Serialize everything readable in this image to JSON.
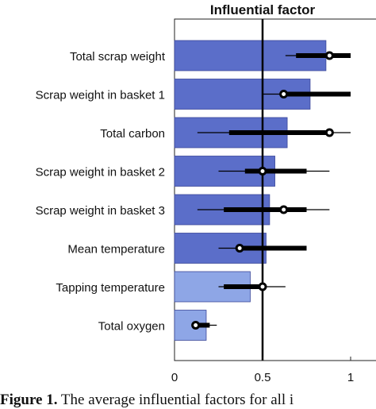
{
  "chart_data": {
    "type": "bar",
    "orientation": "horizontal",
    "title": "Influential factor",
    "categories": [
      "Total scrap weight",
      "Scrap weight in basket 1",
      "Total carbon",
      "Scrap weight in basket 2",
      "Scrap weight in basket 3",
      "Mean temperature",
      "Tapping temperature",
      "Total oxygen"
    ],
    "values": [
      0.86,
      0.77,
      0.64,
      0.57,
      0.54,
      0.52,
      0.43,
      0.18
    ],
    "bar_colors": [
      "#5b6ec9",
      "#5b6ec9",
      "#5b6ec9",
      "#5b6ec9",
      "#5b6ec9",
      "#5b6ec9",
      "#8ea6e6",
      "#8ea6e6"
    ],
    "intervals": [
      {
        "median": 0.88,
        "thick": [
          0.69,
          1.0
        ],
        "thin": [
          0.63,
          1.0
        ]
      },
      {
        "median": 0.62,
        "thick": [
          0.6,
          1.0
        ],
        "thin": [
          0.5,
          1.0
        ]
      },
      {
        "median": 0.88,
        "thick": [
          0.31,
          0.9
        ],
        "thin": [
          0.13,
          1.0
        ]
      },
      {
        "median": 0.5,
        "thick": [
          0.4,
          0.75
        ],
        "thin": [
          0.25,
          0.88
        ]
      },
      {
        "median": 0.62,
        "thick": [
          0.28,
          0.75
        ],
        "thin": [
          0.13,
          0.88
        ]
      },
      {
        "median": 0.37,
        "thick": [
          0.35,
          0.75
        ],
        "thin": [
          0.25,
          0.75
        ]
      },
      {
        "median": 0.5,
        "thick": [
          0.28,
          0.5
        ],
        "thin": [
          0.25,
          0.63
        ]
      },
      {
        "median": 0.12,
        "thick": [
          0.12,
          0.2
        ],
        "thin": [
          0.12,
          0.24
        ]
      }
    ],
    "reference_line": 0.5,
    "xlim": [
      0,
      1
    ],
    "xticks": [
      0,
      0.5,
      1
    ],
    "xtick_labels": [
      "0",
      "0.5",
      "1"
    ],
    "xlabel": "",
    "ylabel": "",
    "grid": false
  },
  "caption": {
    "label": "Figure 1.",
    "text": "The average influential factors for all i"
  }
}
